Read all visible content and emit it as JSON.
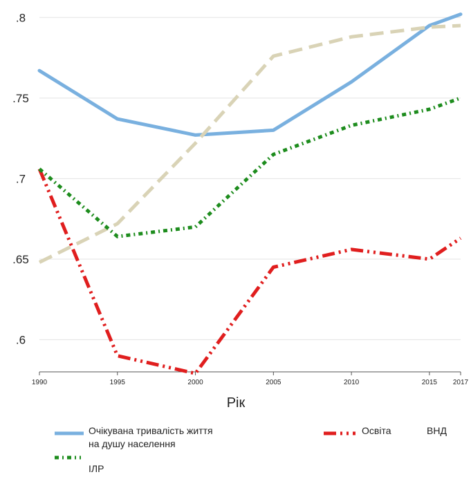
{
  "chart_data": {
    "type": "line",
    "xlabel": "Рік",
    "ylabel": "",
    "x": [
      1990,
      1995,
      2000,
      2005,
      2010,
      2015,
      2017
    ],
    "x_tick_labels": [
      "1990",
      "1995",
      "2000",
      "2005",
      "2010",
      "2015",
      "2017"
    ],
    "ylim": [
      0.58,
      0.81
    ],
    "y_ticks": [
      0.6,
      0.65,
      0.7,
      0.75,
      0.8
    ],
    "y_tick_labels": [
      ".6",
      ".65",
      ".7",
      ".75",
      ".8"
    ],
    "grid": "horizontal",
    "legend_position": "bottom",
    "series": [
      {
        "name": "Очікувана тривалість життя",
        "color": "#79b0df",
        "style": "solid",
        "values": [
          0.767,
          0.737,
          0.727,
          0.73,
          0.76,
          0.795,
          0.802
        ]
      },
      {
        "name": "Освіта",
        "color": "#e01e1e",
        "style": "dash-dot-dot",
        "values": [
          0.706,
          0.59,
          0.579,
          0.645,
          0.656,
          0.65,
          0.663
        ]
      },
      {
        "name": "ВНД на душу населення",
        "color": "#d9d3b6",
        "style": "dashed",
        "values": [
          0.648,
          0.672,
          0.722,
          0.776,
          0.788,
          0.794,
          0.795
        ]
      },
      {
        "name": "ІЛР",
        "color": "#1d8c1d",
        "style": "dash-dot",
        "values": [
          0.706,
          0.664,
          0.67,
          0.715,
          0.733,
          0.743,
          0.75
        ]
      }
    ]
  },
  "legend": {
    "life_line1": "Очікувана тривалість життя",
    "life_line2": "на душу населення",
    "education": "Освіта",
    "gni": "ВНД",
    "hdi": "ІЛР"
  }
}
